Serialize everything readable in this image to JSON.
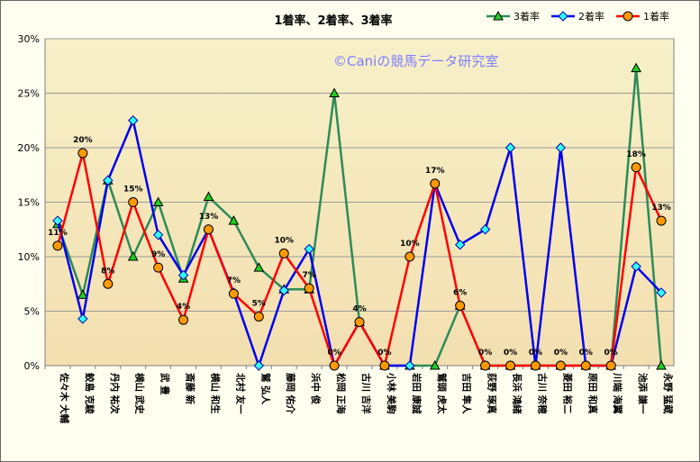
{
  "chart_data": {
    "type": "line",
    "title": "1着率、2着率、3着率",
    "watermark": "©Caniの競馬データ研究室",
    "ylim": [
      0,
      0.3
    ],
    "yticks": [
      "0%",
      "5%",
      "10%",
      "15%",
      "20%",
      "25%",
      "30%"
    ],
    "categories": [
      "佐々木 大輔",
      "鮫島 克駿",
      "丹内 祐次",
      "横山 武史",
      "武 豊",
      "斎藤 新",
      "横山 和生",
      "北村 友一",
      "鷲 弘人",
      "藤岡 佑介",
      "浜中 俊",
      "松岡 正海",
      "古川 吉洋",
      "小林 美駒",
      "岩田 康誠",
      "鷲頭 虎太",
      "吉田 隼人",
      "荻野 琢真",
      "長浜 鴻緒",
      "古川 奈穂",
      "菱田 裕二",
      "原田 和真",
      "川端 海翼",
      "池添 謙一",
      "永野 猛蔵"
    ],
    "series": [
      {
        "name": "3着率",
        "color": "#2e8b57",
        "marker": "triangle",
        "marker_color": "#22cc22",
        "values": [
          0.13,
          0.065,
          0.17,
          0.1,
          0.15,
          0.08,
          0.155,
          0.133,
          0.09,
          0.07,
          0.07,
          0.25,
          0.04,
          0.0,
          0.0,
          0.0,
          0.055,
          0.0,
          0.0,
          0.0,
          0.0,
          0.0,
          0.0,
          0.273,
          0.0
        ]
      },
      {
        "name": "2着率",
        "color": "#0000ee",
        "marker": "diamond",
        "marker_color": "#33ffff",
        "values": [
          0.133,
          0.043,
          0.17,
          0.225,
          0.12,
          0.083,
          0.125,
          0.067,
          0.0,
          0.069,
          0.107,
          0.0,
          0.04,
          0.0,
          0.0,
          0.167,
          0.111,
          0.125,
          0.2,
          0.0,
          0.2,
          0.0,
          0.0,
          0.091,
          0.067
        ]
      },
      {
        "name": "1着率",
        "color": "#ff0000",
        "marker": "circle",
        "marker_color": "#ff9900",
        "values": [
          0.11,
          0.195,
          0.075,
          0.15,
          0.09,
          0.042,
          0.125,
          0.066,
          0.045,
          0.103,
          0.071,
          0.0,
          0.04,
          0.0,
          0.1,
          0.167,
          0.055,
          0.0,
          0.0,
          0.0,
          0.0,
          0.0,
          0.0,
          0.182,
          0.133
        ],
        "labels": [
          "11%",
          "20%",
          "8%",
          "15%",
          "9%",
          "4%",
          "13%",
          "7%",
          "5%",
          "10%",
          "7%",
          "0%",
          "4%",
          "0%",
          "10%",
          "17%",
          "6%",
          "0%",
          "0%",
          "0%",
          "0%",
          "0%",
          "0%",
          "18%",
          "13%"
        ]
      }
    ],
    "legend_position": "top-right",
    "grid": true
  }
}
